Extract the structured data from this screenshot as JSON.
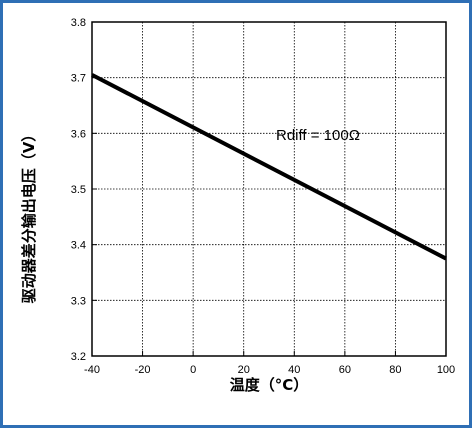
{
  "chart_data": {
    "type": "line",
    "title": "",
    "xlabel": "温度（°C）",
    "ylabel": "驱动器差分输出电压（V）",
    "xlim": [
      -40,
      100
    ],
    "ylim": [
      3.2,
      3.8
    ],
    "x_ticks": [
      "-40",
      "-20",
      "0",
      "20",
      "40",
      "60",
      "80",
      "100"
    ],
    "y_ticks": [
      "3.2",
      "3.3",
      "3.4",
      "3.5",
      "3.6",
      "3.7",
      "3.8"
    ],
    "grid": true,
    "annotation": "Rdiff = 100Ω",
    "series": [
      {
        "x": [
          -40,
          100
        ],
        "y": [
          3.705,
          3.375
        ]
      }
    ]
  },
  "colors": {
    "frame_border": "#2f6fb5",
    "line": "#000000",
    "grid": "#000000"
  }
}
